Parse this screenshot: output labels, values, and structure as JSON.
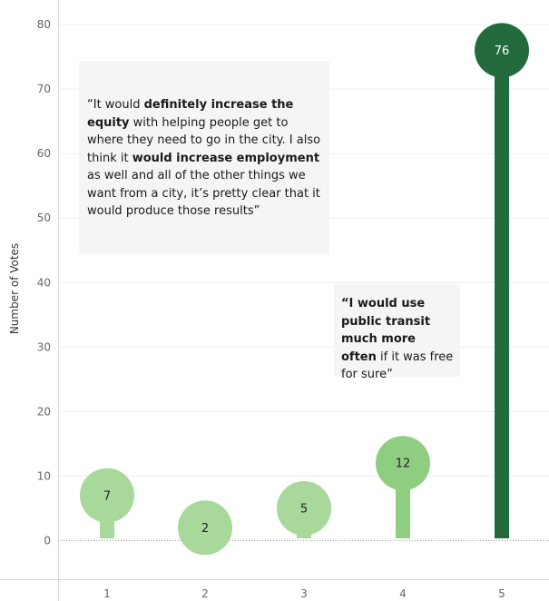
{
  "chart_data": {
    "type": "lollipop",
    "categories": [
      "1",
      "2",
      "3",
      "4",
      "5"
    ],
    "values": [
      7,
      2,
      5,
      12,
      76
    ],
    "value_labels": [
      "7",
      "2",
      "5",
      "12",
      "76"
    ],
    "ylabel": "Number of Votes",
    "xlabel": "",
    "ylim": [
      0,
      80
    ],
    "yticks": [
      0,
      10,
      20,
      30,
      40,
      50,
      60,
      70,
      80
    ],
    "grid": true,
    "colors": [
      "#a9d89b",
      "#a9d89b",
      "#a9d89b",
      "#8fce80",
      "#236b3c"
    ]
  },
  "annotations": [
    {
      "parts": [
        {
          "text": "“It would ",
          "bold": false
        },
        {
          "text": "definitely increase the equity",
          "bold": true
        },
        {
          "text": " with helping people get to where they need to go in the city. I also think it ",
          "bold": false
        },
        {
          "text": "would increase employment",
          "bold": true
        },
        {
          "text": " as well and all of the other things we want from a city, it’s pretty clear that it would produce those results”",
          "bold": false
        }
      ]
    },
    {
      "parts": [
        {
          "text": "“I would use public transit much more often",
          "bold": true
        },
        {
          "text": " if it was free for sure”",
          "bold": false
        }
      ]
    }
  ]
}
